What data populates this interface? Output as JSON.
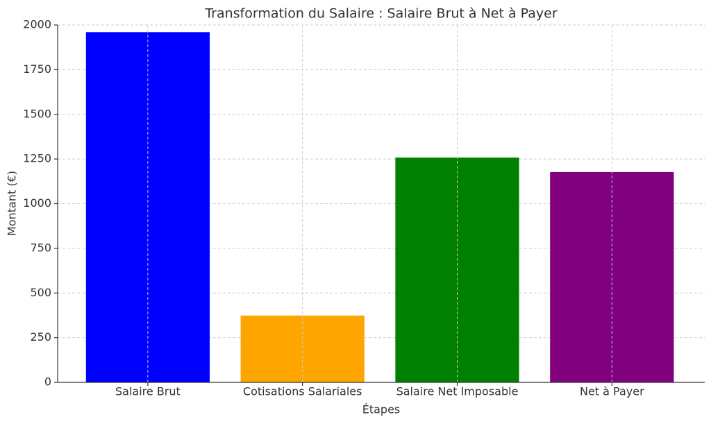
{
  "chart_data": {
    "type": "bar",
    "title": "Transformation du Salaire : Salaire Brut à Net à Payer",
    "x_label": "Étapes",
    "y_label": "Montant (€)",
    "categories": [
      "Salaire Brut",
      "Cotisations Salariales",
      "Salaire Net Imposable",
      "Net à Payer"
    ],
    "values": [
      1960,
      374,
      1258,
      1177
    ],
    "colors": [
      "#0000ff",
      "#ffa500",
      "#008000",
      "#800080"
    ],
    "ylim": [
      0,
      2000
    ],
    "yticks": [
      0,
      250,
      500,
      750,
      1000,
      1250,
      1500,
      1750,
      2000
    ],
    "grid": true
  }
}
